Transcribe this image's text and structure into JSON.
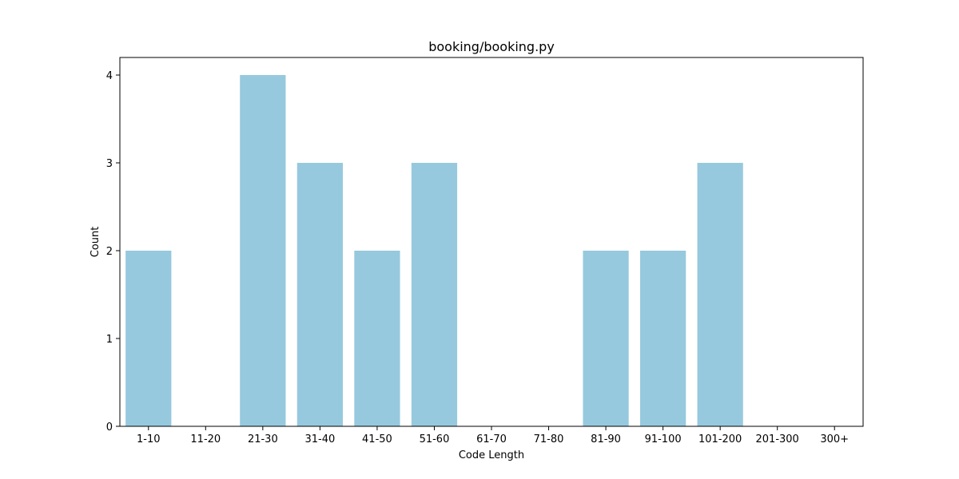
{
  "chart_data": {
    "type": "bar",
    "title": "booking/booking.py",
    "xlabel": "Code Length",
    "ylabel": "Count",
    "categories": [
      "1-10",
      "11-20",
      "21-30",
      "31-40",
      "41-50",
      "51-60",
      "61-70",
      "71-80",
      "81-90",
      "91-100",
      "101-200",
      "201-300",
      "300+"
    ],
    "values": [
      2,
      0,
      4,
      3,
      2,
      3,
      0,
      0,
      2,
      2,
      3,
      0,
      0
    ],
    "ylim": [
      0,
      4.2
    ],
    "yticks": [
      0,
      1,
      2,
      3,
      4
    ],
    "grid": false,
    "bar_color": "#96c9de"
  }
}
